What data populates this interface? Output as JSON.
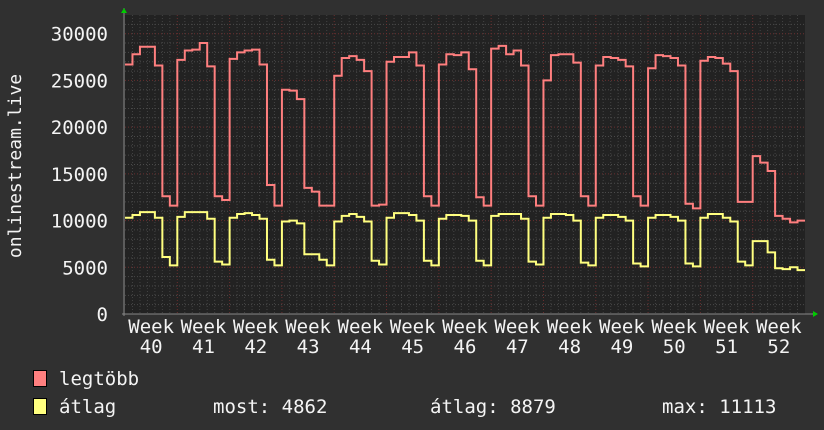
{
  "chart_data": {
    "type": "line",
    "ylabel": "onlinestream.live",
    "ylim": [
      0,
      32000
    ],
    "yticks": [
      0,
      5000,
      10000,
      15000,
      20000,
      25000,
      30000
    ],
    "xtick_labels": [
      "Week 40",
      "Week 41",
      "Week 42",
      "Week 43",
      "Week 44",
      "Week 45",
      "Week 46",
      "Week 47",
      "Week 48",
      "Week 49",
      "Week 50",
      "Week 51",
      "Week 52"
    ],
    "grid": true,
    "legend_position": "bottom-left",
    "series": [
      {
        "name": "legtöbb",
        "color": "#ff7f7f",
        "values": [
          26700,
          27800,
          28600,
          28600,
          26600,
          12600,
          11600,
          27200,
          28200,
          28300,
          29000,
          26500,
          12600,
          12200,
          27300,
          28000,
          28200,
          28300,
          26700,
          13800,
          11600,
          24000,
          23900,
          23000,
          13500,
          13100,
          11600,
          11600,
          25500,
          27400,
          27600,
          27200,
          26000,
          11600,
          11700,
          27000,
          27500,
          27500,
          28000,
          26600,
          12600,
          11600,
          26700,
          27800,
          27700,
          28000,
          26200,
          12500,
          11600,
          28400,
          28700,
          27800,
          28200,
          26600,
          12600,
          11600,
          25000,
          27700,
          27800,
          27800,
          26900,
          12600,
          11600,
          26600,
          27500,
          27400,
          27200,
          26500,
          12600,
          11600,
          26300,
          27700,
          27600,
          27400,
          26600,
          11800,
          11300,
          27100,
          27500,
          27400,
          26800,
          26000,
          12000,
          12000,
          16900,
          16200,
          15300,
          10500,
          10200,
          9800,
          10000
        ]
      },
      {
        "name": "átlag",
        "color": "#ffff7f",
        "values": [
          10300,
          10600,
          10900,
          10900,
          10300,
          6100,
          5200,
          10400,
          10900,
          10900,
          10900,
          10200,
          5600,
          5300,
          10300,
          10700,
          10800,
          10600,
          10200,
          5800,
          5200,
          9900,
          10000,
          9700,
          6400,
          6400,
          5800,
          5200,
          9900,
          10500,
          10700,
          10400,
          9900,
          5700,
          5300,
          10300,
          10800,
          10800,
          10600,
          10000,
          5700,
          5200,
          10200,
          10600,
          10600,
          10500,
          10000,
          5700,
          5200,
          10500,
          10700,
          10700,
          10700,
          10200,
          5600,
          5300,
          10300,
          10700,
          10700,
          10600,
          10000,
          5500,
          5200,
          10300,
          10600,
          10600,
          10400,
          10000,
          5400,
          5100,
          10300,
          10600,
          10600,
          10400,
          10000,
          5400,
          5100,
          10300,
          10700,
          10700,
          10300,
          9900,
          5600,
          5200,
          7800,
          7800,
          6600,
          4900,
          4800,
          5000,
          4700
        ]
      }
    ]
  },
  "legend": {
    "items": [
      {
        "label": "legtöbb",
        "color": "#ff7f7f"
      },
      {
        "label": "átlag",
        "color": "#ffff7f"
      }
    ],
    "stats": {
      "most": "most: 4862",
      "atlag": "átlag: 8879",
      "max": "max: 11113"
    }
  }
}
